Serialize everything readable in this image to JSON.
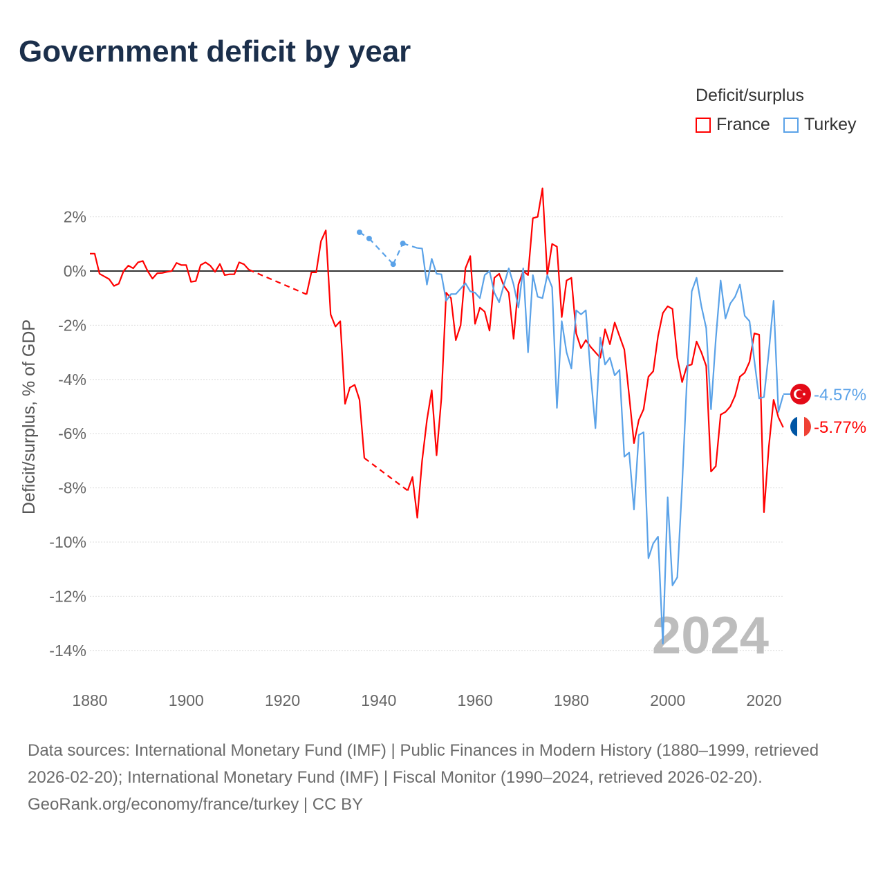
{
  "title": "Government deficit by year",
  "legend": {
    "title": "Deficit/surplus",
    "items": [
      {
        "label": "France",
        "color": "#ff0000"
      },
      {
        "label": "Turkey",
        "color": "#5aa2e8"
      }
    ]
  },
  "footer": {
    "sources": "Data sources: International Monetary Fund (IMF) | Public Finances in Modern History (1880–1999, retrieved 2026-02-20); International Monetary Fund (IMF) | Fiscal Monitor (1990–2024, retrieved 2026-02-20).",
    "credit": "GeoRank.org/economy/france/turkey | CC BY"
  },
  "chart_data": {
    "type": "line",
    "title": "Government deficit by year",
    "xlabel": "",
    "ylabel": "Deficit/surplus, % of GDP",
    "xlim": [
      1880,
      2024
    ],
    "ylim": [
      -14,
      3
    ],
    "x_ticks": [
      {
        "value": 1880,
        "label": "1880"
      },
      {
        "value": 1900,
        "label": "1900"
      },
      {
        "value": 1920,
        "label": "1920"
      },
      {
        "value": 1940,
        "label": "1940"
      },
      {
        "value": 1960,
        "label": "1960"
      },
      {
        "value": 1980,
        "label": "1980"
      },
      {
        "value": 2000,
        "label": "2000"
      },
      {
        "value": 2020,
        "label": "2020"
      }
    ],
    "y_ticks": [
      {
        "value": 2,
        "label": "2%"
      },
      {
        "value": 0,
        "label": "0%"
      },
      {
        "value": -2,
        "label": "-2%"
      },
      {
        "value": -4,
        "label": "-4%"
      },
      {
        "value": -6,
        "label": "-6%"
      },
      {
        "value": -8,
        "label": "-8%"
      },
      {
        "value": -10,
        "label": "-10%"
      },
      {
        "value": -12,
        "label": "-12%"
      },
      {
        "value": -14,
        "label": "-14%"
      }
    ],
    "grid": true,
    "legend_position": "top-right",
    "year_watermark": "2024",
    "series": [
      {
        "name": "France",
        "color": "#ff0000",
        "end_label": "-5.77%",
        "points": [
          [
            1880,
            0.64
          ],
          [
            1881,
            0.64
          ],
          [
            1882,
            -0.1
          ],
          [
            1883,
            -0.2
          ],
          [
            1884,
            -0.3
          ],
          [
            1885,
            -0.55
          ],
          [
            1886,
            -0.47
          ],
          [
            1887,
            0
          ],
          [
            1888,
            0.2
          ],
          [
            1889,
            0.1
          ],
          [
            1890,
            0.32
          ],
          [
            1891,
            0.37
          ],
          [
            1892,
            0
          ],
          [
            1893,
            -0.28
          ],
          [
            1894,
            -0.08
          ],
          [
            1895,
            -0.07
          ],
          [
            1896,
            -0.03
          ],
          [
            1897,
            0.0
          ],
          [
            1898,
            0.3
          ],
          [
            1899,
            0.22
          ],
          [
            1900,
            0.22
          ],
          [
            1901,
            -0.4
          ],
          [
            1902,
            -0.37
          ],
          [
            1903,
            0.22
          ],
          [
            1904,
            0.32
          ],
          [
            1905,
            0.2
          ],
          [
            1906,
            -0.03
          ],
          [
            1907,
            0.26
          ],
          [
            1908,
            -0.15
          ],
          [
            1909,
            -0.12
          ],
          [
            1910,
            -0.12
          ],
          [
            1911,
            0.32
          ],
          [
            1912,
            0.25
          ],
          [
            1913,
            0.05
          ],
          [
            1925,
            -0.86
          ],
          [
            1926,
            -0.05
          ],
          [
            1927,
            -0.05
          ],
          [
            1928,
            1.1
          ],
          [
            1929,
            1.5
          ],
          [
            1930,
            -1.6
          ],
          [
            1931,
            -2.05
          ],
          [
            1932,
            -1.85
          ],
          [
            1933,
            -4.9
          ],
          [
            1934,
            -4.3
          ],
          [
            1935,
            -4.2
          ],
          [
            1936,
            -4.75
          ],
          [
            1937,
            -6.9
          ],
          [
            1946,
            -8.1
          ],
          [
            1947,
            -7.6
          ],
          [
            1948,
            -9.1
          ],
          [
            1949,
            -7.0
          ],
          [
            1950,
            -5.5
          ],
          [
            1951,
            -4.4
          ],
          [
            1952,
            -6.8
          ],
          [
            1953,
            -4.7
          ],
          [
            1954,
            -0.8
          ],
          [
            1955,
            -1.0
          ],
          [
            1956,
            -2.55
          ],
          [
            1957,
            -2.0
          ],
          [
            1958,
            0.1
          ],
          [
            1959,
            0.55
          ],
          [
            1960,
            -1.95
          ],
          [
            1961,
            -1.35
          ],
          [
            1962,
            -1.5
          ],
          [
            1963,
            -2.2
          ],
          [
            1964,
            -0.25
          ],
          [
            1965,
            -0.1
          ],
          [
            1966,
            -0.55
          ],
          [
            1967,
            -0.8
          ],
          [
            1968,
            -2.5
          ],
          [
            1969,
            -0.5
          ],
          [
            1970,
            0
          ],
          [
            1971,
            -0.15
          ],
          [
            1972,
            1.95
          ],
          [
            1973,
            2.0
          ],
          [
            1974,
            3.05
          ],
          [
            1975,
            -0.15
          ],
          [
            1976,
            1.0
          ],
          [
            1977,
            0.9
          ],
          [
            1978,
            -1.7
          ],
          [
            1979,
            -0.35
          ],
          [
            1980,
            -0.25
          ],
          [
            1981,
            -2.3
          ],
          [
            1982,
            -2.85
          ],
          [
            1983,
            -2.55
          ],
          [
            1984,
            -2.8
          ],
          [
            1985,
            -3.0
          ],
          [
            1986,
            -3.2
          ],
          [
            1987,
            -2.15
          ],
          [
            1988,
            -2.7
          ],
          [
            1989,
            -1.9
          ],
          [
            1990,
            -2.4
          ],
          [
            1991,
            -2.9
          ],
          [
            1992,
            -4.6
          ],
          [
            1993,
            -6.35
          ],
          [
            1994,
            -5.5
          ],
          [
            1995,
            -5.1
          ],
          [
            1996,
            -3.9
          ],
          [
            1997,
            -3.7
          ],
          [
            1998,
            -2.4
          ],
          [
            1999,
            -1.55
          ],
          [
            2000,
            -1.3
          ],
          [
            2001,
            -1.4
          ],
          [
            2002,
            -3.2
          ],
          [
            2003,
            -4.1
          ],
          [
            2004,
            -3.5
          ],
          [
            2005,
            -3.45
          ],
          [
            2006,
            -2.6
          ],
          [
            2007,
            -3.0
          ],
          [
            2008,
            -3.5
          ],
          [
            2009,
            -7.4
          ],
          [
            2010,
            -7.2
          ],
          [
            2011,
            -5.3
          ],
          [
            2012,
            -5.2
          ],
          [
            2013,
            -5.0
          ],
          [
            2014,
            -4.6
          ],
          [
            2015,
            -3.9
          ],
          [
            2016,
            -3.75
          ],
          [
            2017,
            -3.35
          ],
          [
            2018,
            -2.3
          ],
          [
            2019,
            -2.35
          ],
          [
            2020,
            -8.9
          ],
          [
            2021,
            -6.5
          ],
          [
            2022,
            -4.75
          ],
          [
            2023,
            -5.4
          ],
          [
            2024,
            -5.77
          ]
        ]
      },
      {
        "name": "Turkey",
        "color": "#5aa2e8",
        "end_label": "-4.57%",
        "points": [
          [
            1936,
            1.43
          ],
          [
            1938,
            1.2
          ],
          [
            1943,
            0.25
          ],
          [
            1945,
            1.02
          ],
          [
            1948,
            0.85
          ],
          [
            1949,
            0.83
          ],
          [
            1950,
            -0.5
          ],
          [
            1951,
            0.45
          ],
          [
            1952,
            -0.1
          ],
          [
            1953,
            -0.12
          ],
          [
            1954,
            -1.1
          ],
          [
            1955,
            -0.85
          ],
          [
            1956,
            -0.85
          ],
          [
            1957,
            -0.65
          ],
          [
            1958,
            -0.45
          ],
          [
            1959,
            -0.75
          ],
          [
            1960,
            -0.8
          ],
          [
            1961,
            -1.0
          ],
          [
            1962,
            -0.15
          ],
          [
            1963,
            0
          ],
          [
            1964,
            -0.8
          ],
          [
            1965,
            -1.15
          ],
          [
            1966,
            -0.5
          ],
          [
            1967,
            0.1
          ],
          [
            1968,
            -0.5
          ],
          [
            1969,
            -1.35
          ],
          [
            1970,
            0.1
          ],
          [
            1971,
            -3.0
          ],
          [
            1972,
            -0.15
          ],
          [
            1973,
            -0.95
          ],
          [
            1974,
            -1.0
          ],
          [
            1975,
            -0.15
          ],
          [
            1976,
            -0.6
          ],
          [
            1977,
            -5.05
          ],
          [
            1978,
            -1.85
          ],
          [
            1979,
            -3.0
          ],
          [
            1980,
            -3.6
          ],
          [
            1981,
            -1.45
          ],
          [
            1982,
            -1.6
          ],
          [
            1983,
            -1.45
          ],
          [
            1984,
            -3.8
          ],
          [
            1985,
            -5.8
          ],
          [
            1986,
            -2.45
          ],
          [
            1987,
            -3.45
          ],
          [
            1988,
            -3.2
          ],
          [
            1989,
            -3.85
          ],
          [
            1990,
            -3.65
          ],
          [
            1991,
            -6.85
          ],
          [
            1992,
            -6.7
          ],
          [
            1993,
            -8.8
          ],
          [
            1994,
            -6.05
          ],
          [
            1995,
            -5.95
          ],
          [
            1996,
            -10.6
          ],
          [
            1997,
            -10.05
          ],
          [
            1998,
            -9.8
          ],
          [
            1999,
            -13.75
          ],
          [
            2000,
            -8.35
          ],
          [
            2001,
            -11.6
          ],
          [
            2002,
            -11.3
          ],
          [
            2003,
            -7.9
          ],
          [
            2004,
            -4.0
          ],
          [
            2005,
            -0.75
          ],
          [
            2006,
            -0.25
          ],
          [
            2007,
            -1.3
          ],
          [
            2008,
            -2.1
          ],
          [
            2009,
            -5.1
          ],
          [
            2010,
            -2.5
          ],
          [
            2011,
            -0.35
          ],
          [
            2012,
            -1.75
          ],
          [
            2013,
            -1.2
          ],
          [
            2014,
            -0.95
          ],
          [
            2015,
            -0.5
          ],
          [
            2016,
            -1.65
          ],
          [
            2017,
            -1.85
          ],
          [
            2018,
            -3.3
          ],
          [
            2019,
            -4.7
          ],
          [
            2020,
            -4.65
          ],
          [
            2021,
            -3.0
          ],
          [
            2022,
            -1.1
          ],
          [
            2023,
            -5.2
          ],
          [
            2024,
            -4.57
          ]
        ]
      }
    ]
  }
}
